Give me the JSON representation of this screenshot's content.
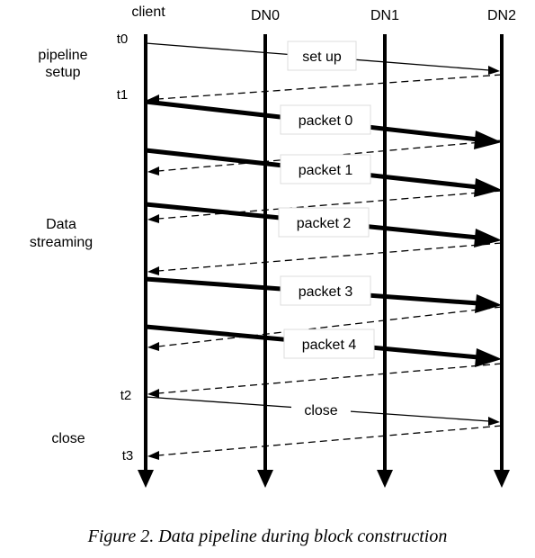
{
  "lanes": [
    {
      "id": "client",
      "label": "client"
    },
    {
      "id": "dn0",
      "label": "DN0"
    },
    {
      "id": "dn1",
      "label": "DN1"
    },
    {
      "id": "dn2",
      "label": "DN2"
    }
  ],
  "time_labels": [
    "t0",
    "t1",
    "t2",
    "t3"
  ],
  "phases": {
    "setup": [
      "pipeline",
      "setup"
    ],
    "streaming": [
      "Data",
      "streaming"
    ],
    "close": "close"
  },
  "messages": [
    {
      "id": "setup",
      "label": "set up",
      "style": "thin"
    },
    {
      "id": "setup-ack",
      "style": "dashed"
    },
    {
      "id": "packet0",
      "label": "packet 0",
      "style": "thick"
    },
    {
      "id": "ack0",
      "style": "dashed"
    },
    {
      "id": "packet1",
      "label": "packet 1",
      "style": "thick"
    },
    {
      "id": "ack1",
      "style": "dashed"
    },
    {
      "id": "packet2",
      "label": "packet 2",
      "style": "thick"
    },
    {
      "id": "ack2",
      "style": "dashed"
    },
    {
      "id": "packet3",
      "label": "packet 3",
      "style": "thick"
    },
    {
      "id": "ack3",
      "style": "dashed"
    },
    {
      "id": "packet4",
      "label": "packet 4",
      "style": "thick"
    },
    {
      "id": "ack4",
      "style": "dashed"
    },
    {
      "id": "close",
      "label": "close",
      "style": "thin"
    },
    {
      "id": "close-ack",
      "style": "dashed"
    }
  ],
  "caption": "Figure 2. Data pipeline during block construction"
}
